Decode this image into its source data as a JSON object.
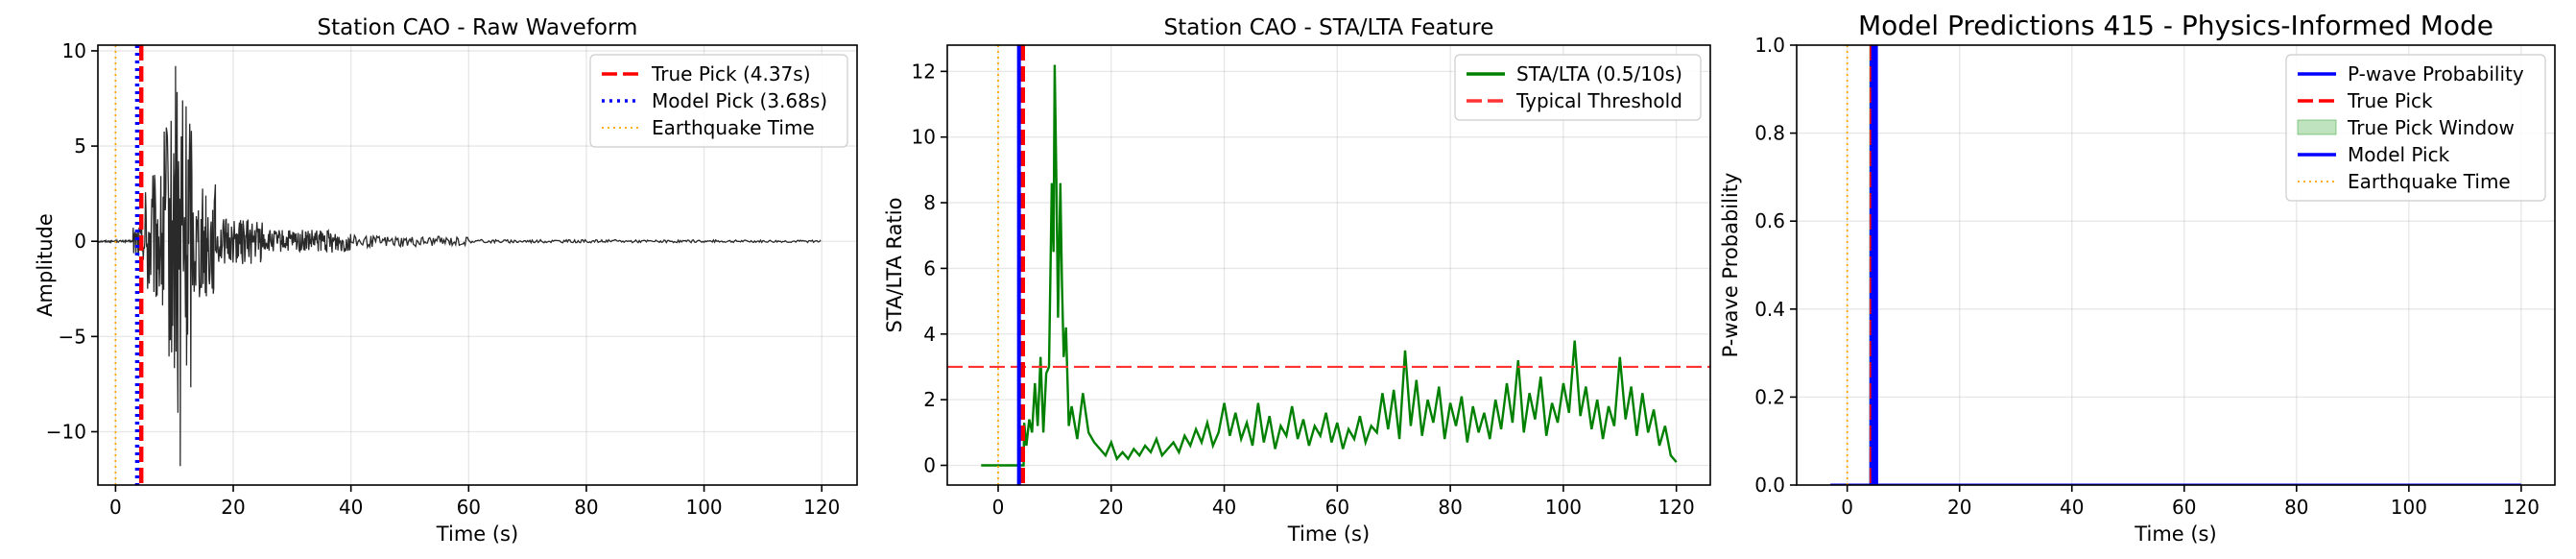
{
  "chart_data": [
    {
      "type": "line",
      "title": "Station CAO - Raw Waveform",
      "xlabel": "Time (s)",
      "ylabel": "Amplitude",
      "xlim": [
        -3,
        126
      ],
      "ylim": [
        -12.8,
        10.3
      ],
      "xticks": [
        0,
        20,
        40,
        60,
        80,
        100,
        120
      ],
      "yticks": [
        -10,
        -5,
        0,
        5,
        10
      ],
      "ytick_labels": [
        "−10",
        "−5",
        "0",
        "5",
        "10"
      ],
      "grid": true,
      "legend_placement": "upper-right",
      "series": [
        {
          "kind": "waveform",
          "color": "#2a2a2a",
          "segments": [
            {
              "t_start": -3,
              "t_end": 3,
              "amp": 0.05
            },
            {
              "t_start": 3,
              "t_end": 5,
              "amp": 1.0
            },
            {
              "t_start": 5,
              "t_end": 8,
              "amp": 3.5
            },
            {
              "t_start": 8,
              "t_end": 10,
              "amp": 6.5
            },
            {
              "t_start": 10,
              "t_end": 13,
              "amp": 8.0
            },
            {
              "t_start": 13,
              "t_end": 17,
              "amp": 3.0
            },
            {
              "t_start": 17,
              "t_end": 25,
              "amp": 1.2
            },
            {
              "t_start": 25,
              "t_end": 40,
              "amp": 0.6
            },
            {
              "t_start": 40,
              "t_end": 60,
              "amp": 0.3
            },
            {
              "t_start": 60,
              "t_end": 120,
              "amp": 0.12
            }
          ],
          "peaks": [
            [
              10.2,
              9.2
            ],
            [
              10.6,
              -9.0
            ],
            [
              11.0,
              -11.8
            ],
            [
              11.4,
              7.4
            ],
            [
              9.3,
              -5.2
            ],
            [
              8.6,
              4.6
            ]
          ]
        },
        {
          "name": "True Pick (4.37s)",
          "kind": "vline",
          "x": 4.37,
          "color": "#ff0000",
          "dash": "dashed"
        },
        {
          "name": "Model Pick (3.68s)",
          "kind": "vline",
          "x": 3.68,
          "color": "#0000ff",
          "dash": "dotted"
        },
        {
          "name": "Earthquake Time",
          "kind": "vline",
          "x": 0,
          "color": "#ffa500",
          "dash": "dotted-thin"
        }
      ],
      "legend": [
        "True Pick (4.37s)",
        "Model Pick (3.68s)",
        "Earthquake Time"
      ]
    },
    {
      "type": "line",
      "title": "Station CAO - STA/LTA Feature",
      "xlabel": "Time (s)",
      "ylabel": "STA/LTA Ratio",
      "xlim": [
        -9,
        126
      ],
      "ylim": [
        -0.6,
        12.8
      ],
      "xticks": [
        0,
        20,
        40,
        60,
        80,
        100,
        120
      ],
      "yticks": [
        0,
        2,
        4,
        6,
        8,
        10,
        12
      ],
      "ytick_labels": [
        "0",
        "2",
        "4",
        "6",
        "8",
        "10",
        "12"
      ],
      "grid": true,
      "legend_placement": "upper-right",
      "series": [
        {
          "name": "STA/LTA (0.5/10s)",
          "kind": "line",
          "color": "#008000",
          "x": [
            -3,
            4.5,
            4.6,
            5,
            5.5,
            6,
            6.5,
            7,
            7.5,
            8,
            8.5,
            9,
            9.5,
            9.8,
            10,
            10.3,
            10.6,
            11,
            11.3,
            11.6,
            12,
            12.5,
            13,
            14,
            15,
            16,
            17,
            18,
            19,
            20,
            21,
            22,
            23,
            24,
            25,
            26,
            27,
            28,
            29,
            30,
            31,
            32,
            33,
            34,
            35,
            36,
            37,
            38,
            39,
            40,
            41,
            42,
            43,
            44,
            45,
            46,
            47,
            48,
            49,
            50,
            51,
            52,
            53,
            54,
            55,
            56,
            57,
            58,
            59,
            60,
            61,
            62,
            63,
            64,
            65,
            66,
            67,
            68,
            69,
            70,
            71,
            72,
            73,
            74,
            75,
            76,
            77,
            78,
            79,
            80,
            81,
            82,
            83,
            84,
            85,
            86,
            87,
            88,
            89,
            90,
            91,
            92,
            93,
            94,
            95,
            96,
            97,
            98,
            99,
            100,
            101,
            102,
            103,
            104,
            105,
            106,
            107,
            108,
            109,
            110,
            111,
            112,
            113,
            114,
            115,
            116,
            117,
            118,
            119,
            120
          ],
          "y": [
            0,
            0,
            1.3,
            0.6,
            1.4,
            1.0,
            2.5,
            1.2,
            3.3,
            1.0,
            2.8,
            3.0,
            8.6,
            6.5,
            12.2,
            8.6,
            4.5,
            8.6,
            5.5,
            3.3,
            4.2,
            1.2,
            1.8,
            0.8,
            2.2,
            1.0,
            0.7,
            0.5,
            0.3,
            0.7,
            0.2,
            0.4,
            0.2,
            0.5,
            0.3,
            0.6,
            0.4,
            0.8,
            0.3,
            0.5,
            0.7,
            0.4,
            0.9,
            0.6,
            1.1,
            0.7,
            1.3,
            0.6,
            1.0,
            1.9,
            0.9,
            1.6,
            0.8,
            1.3,
            0.6,
            1.9,
            0.7,
            1.5,
            0.5,
            1.2,
            0.9,
            1.8,
            0.8,
            1.4,
            0.6,
            1.2,
            0.9,
            1.6,
            0.7,
            1.3,
            0.5,
            1.1,
            0.8,
            1.5,
            0.7,
            1.2,
            1.0,
            2.2,
            1.1,
            2.3,
            0.8,
            3.5,
            1.2,
            2.6,
            0.9,
            2.0,
            1.3,
            2.4,
            0.8,
            1.9,
            1.2,
            2.1,
            0.7,
            1.8,
            1.0,
            1.6,
            0.8,
            2.0,
            1.1,
            2.5,
            1.3,
            3.2,
            1.0,
            2.2,
            1.4,
            2.7,
            0.9,
            1.9,
            1.3,
            2.5,
            1.6,
            3.8,
            1.5,
            2.4,
            1.1,
            2.0,
            0.8,
            1.8,
            1.2,
            3.3,
            1.4,
            2.4,
            0.9,
            2.2,
            1.0,
            1.7,
            0.6,
            1.2,
            0.3,
            0.1
          ]
        },
        {
          "name": "Typical Threshold",
          "kind": "hline",
          "y": 3,
          "color": "#ff3333",
          "dash": "dashed"
        },
        {
          "kind": "vline",
          "x": 4.37,
          "color": "#ff0000",
          "dash": "dashed"
        },
        {
          "kind": "vline",
          "x": 3.68,
          "color": "#0000ff",
          "dash": "solid"
        },
        {
          "kind": "vline",
          "x": 0,
          "color": "#ffa500",
          "dash": "dotted-thin"
        }
      ],
      "legend": [
        "STA/LTA (0.5/10s)",
        "Typical Threshold"
      ]
    },
    {
      "type": "line",
      "title": "Model Predictions 415 - Physics-Informed Mode",
      "xlabel": "Time (s)",
      "ylabel": "P-wave Probability",
      "xlim": [
        -9,
        126
      ],
      "ylim": [
        0,
        1
      ],
      "xticks": [
        0,
        20,
        40,
        60,
        80,
        100,
        120
      ],
      "yticks": [
        0,
        0.2,
        0.4,
        0.6,
        0.8,
        1.0
      ],
      "ytick_labels": [
        "0.0",
        "0.2",
        "0.4",
        "0.6",
        "0.8",
        "1.0"
      ],
      "grid": true,
      "legend_placement": "upper-right",
      "series": [
        {
          "name": "P-wave Probability",
          "kind": "line",
          "color": "#0000ff",
          "x": [
            -3,
            4.2,
            4.25,
            5.2,
            5.25,
            120
          ],
          "y": [
            0,
            0,
            1,
            1,
            0,
            0
          ]
        },
        {
          "name": "True Pick",
          "kind": "vline",
          "x": 4.37,
          "color": "#ff0000",
          "dash": "dashed"
        },
        {
          "name": "True Pick Window",
          "kind": "span",
          "x0": 3.87,
          "x1": 4.87,
          "color": "#2ca02c"
        },
        {
          "name": "Model Pick",
          "kind": "vline",
          "x": 4.6,
          "color": "#0000ff",
          "dash": "solid"
        },
        {
          "name": "Earthquake Time",
          "kind": "vline",
          "x": 0,
          "color": "#ffa500",
          "dash": "dotted-thin"
        }
      ],
      "legend": [
        "P-wave Probability",
        "True Pick",
        "True Pick Window",
        "Model Pick",
        "Earthquake Time"
      ]
    }
  ]
}
